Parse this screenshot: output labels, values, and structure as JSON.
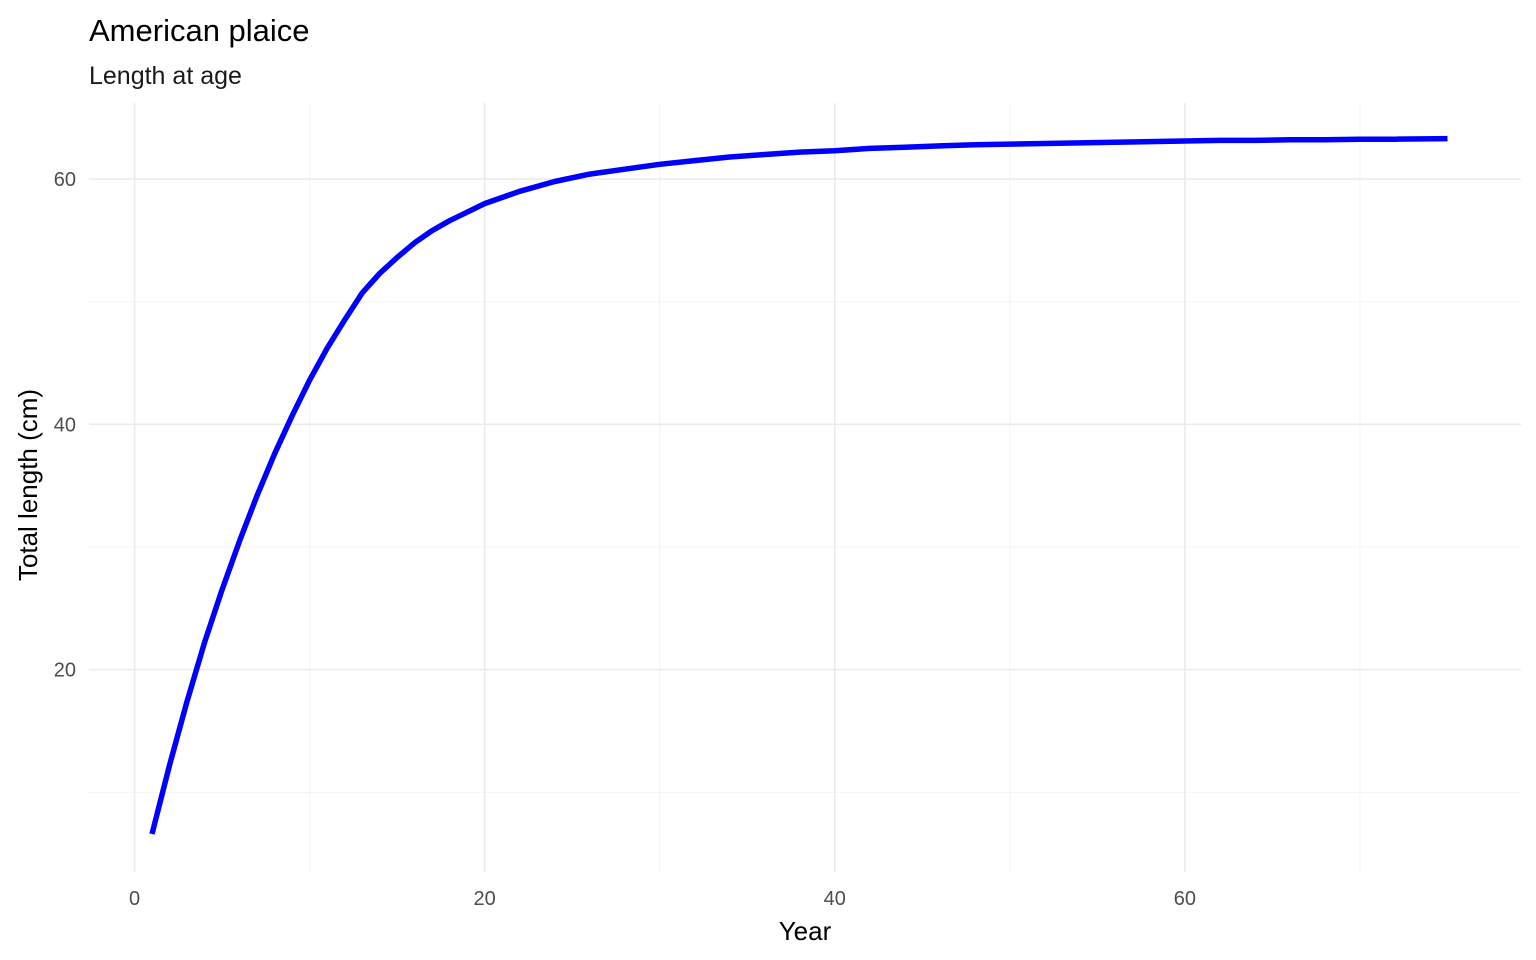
{
  "chart_data": {
    "type": "line",
    "title": "American plaice",
    "subtitle": "Length at age",
    "xlabel": "Year",
    "ylabel": "Total length (cm)",
    "xlim": [
      -2.6,
      79.2
    ],
    "ylim": [
      3.5,
      66.2
    ],
    "xticks": [
      0,
      20,
      40,
      60
    ],
    "yticks": [
      20,
      40,
      60
    ],
    "xminor": [
      10,
      30,
      50,
      70
    ],
    "yminor": [
      10,
      30,
      50
    ],
    "grid": true,
    "legend": "none",
    "colors": {
      "line": "#0000ff"
    },
    "series": [
      {
        "x": [
          1,
          2,
          3,
          4,
          5,
          6,
          7,
          8,
          9,
          10,
          11,
          12,
          13,
          14,
          15,
          16,
          17,
          18,
          19,
          20,
          22,
          24,
          26,
          28,
          30,
          32,
          34,
          36,
          38,
          40,
          42,
          44,
          46,
          48,
          50,
          52,
          54,
          56,
          58,
          60,
          62,
          64,
          66,
          68,
          70,
          72,
          75
        ],
        "y": [
          6.6,
          12.2,
          17.4,
          22.2,
          26.5,
          30.5,
          34.2,
          37.6,
          40.7,
          43.6,
          46.2,
          48.5,
          50.7,
          52.3,
          53.6,
          54.8,
          55.8,
          56.6,
          57.3,
          58.0,
          59.0,
          59.8,
          60.4,
          60.8,
          61.2,
          61.5,
          61.8,
          62.0,
          62.2,
          62.3,
          62.5,
          62.6,
          62.7,
          62.8,
          62.85,
          62.9,
          62.95,
          63.0,
          63.05,
          63.1,
          63.15,
          63.15,
          63.2,
          63.2,
          63.25,
          63.25,
          63.3
        ]
      }
    ]
  }
}
